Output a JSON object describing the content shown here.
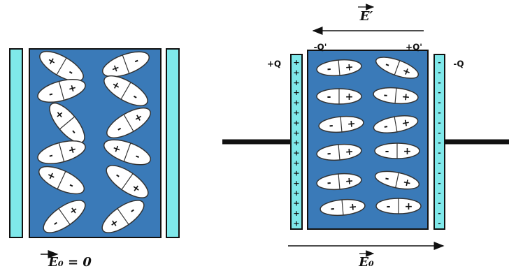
{
  "left_panel": {
    "field_label": "E₀ = 0",
    "dipoles": [
      [
        "+",
        "-"
      ],
      [
        "+",
        "-"
      ],
      [
        "-",
        "+"
      ],
      [
        "+",
        "-"
      ],
      [
        "+",
        "-"
      ],
      [
        "-",
        "+"
      ],
      [
        "-",
        "+"
      ],
      [
        "+",
        "-"
      ],
      [
        "+",
        "-"
      ],
      [
        "-",
        "+"
      ],
      [
        "-",
        "+"
      ],
      [
        "+",
        "-"
      ]
    ]
  },
  "right_panel": {
    "induced_field_label": "E′",
    "field_label": "E₀",
    "left_bound_charge": "-Q'",
    "right_bound_charge": "+Q'",
    "left_plate_charge": "+Q",
    "right_plate_charge": "-Q",
    "left_plate_sign": "+",
    "right_plate_sign": "-",
    "dipoles": [
      [
        "-",
        "+"
      ],
      [
        "-",
        "+"
      ],
      [
        "-",
        "+"
      ],
      [
        "-",
        "+"
      ],
      [
        "-",
        "+"
      ],
      [
        "-",
        "+"
      ],
      [
        "-",
        "+"
      ],
      [
        "-",
        "+"
      ],
      [
        "-",
        "+"
      ],
      [
        "-",
        "+"
      ],
      [
        "-",
        "+"
      ],
      [
        "-",
        "+"
      ]
    ]
  }
}
